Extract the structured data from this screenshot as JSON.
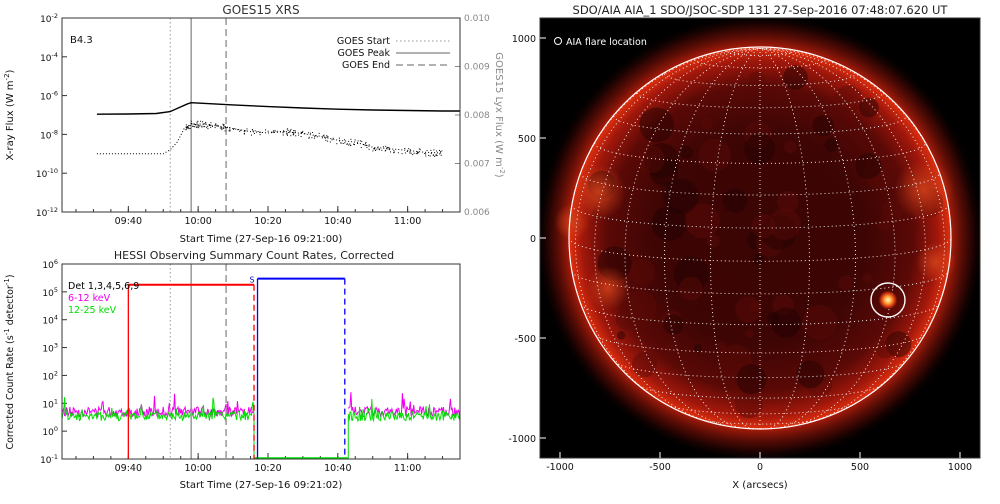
{
  "chart_data": [
    {
      "type": "line",
      "title": "GOES15 XRS",
      "xlabel": "Start Time (27-Sep-16 09:21:00)",
      "ylabel_left": "X-ray Flux (W m^-2)",
      "ylabel_left_text": "X-ray Flux (W m",
      "ylabel_left_exp": "-2",
      "ylabel_right_text": "GOES15 Lyx Flux (W m",
      "ylabel_right_exp": "-2",
      "goes_class": "B4.3",
      "x_range": [
        "09:21",
        "11:15"
      ],
      "x_ticks": [
        "09:40",
        "10:00",
        "10:20",
        "10:40",
        "11:00"
      ],
      "yscale_left": "log",
      "ylim_left": [
        1e-12,
        0.01
      ],
      "y_ticks_left": [
        {
          "value": 0.01,
          "base": "10",
          "exp": "-2"
        },
        {
          "value": 0.0001,
          "base": "10",
          "exp": "-4"
        },
        {
          "value": 1e-06,
          "base": "10",
          "exp": "-6"
        },
        {
          "value": 1e-08,
          "base": "10",
          "exp": "-8"
        },
        {
          "value": 1e-10,
          "base": "10",
          "exp": "-10"
        },
        {
          "value": 1e-12,
          "base": "10",
          "exp": "-12"
        }
      ],
      "ylim_right": [
        0.006,
        0.01
      ],
      "y_ticks_right": [
        "0.010",
        "0.009",
        "0.008",
        "0.007",
        "0.006"
      ],
      "legend": [
        "GOES Start",
        "GOES Peak",
        "GOES End"
      ],
      "legend_position": "top-right",
      "markers": {
        "start": "09:52",
        "peak": "09:58",
        "end": "10:08"
      },
      "series": [
        {
          "line_style": "solid",
          "x": [
            "09:31",
            "09:40",
            "09:48",
            "09:52",
            "09:55",
            "09:57",
            "09:58",
            "10:00",
            "10:10",
            "10:20",
            "10:30",
            "10:40",
            "10:50",
            "11:00",
            "11:10",
            "11:15"
          ],
          "y": [
            1.1e-07,
            1.12e-07,
            1.2e-07,
            1.5e-07,
            2.6e-07,
            3.8e-07,
            4.3e-07,
            4.1e-07,
            3.3e-07,
            2.7e-07,
            2.3e-07,
            2e-07,
            1.8e-07,
            1.7e-07,
            1.6e-07,
            1.6e-07
          ]
        },
        {
          "line_style": "dotted",
          "x": [
            "09:31",
            "09:40",
            "09:50",
            "09:52",
            "09:54",
            "09:56",
            "09:58",
            "10:02",
            "10:06",
            "10:10",
            "10:15",
            "10:20",
            "10:25",
            "10:30",
            "10:35",
            "10:40",
            "10:45",
            "10:50",
            "10:55",
            "11:00",
            "11:05",
            "11:10"
          ],
          "y": [
            1e-09,
            1e-09,
            1e-09,
            1.6e-09,
            4e-09,
            2e-08,
            3.6e-08,
            3.3e-08,
            2.6e-08,
            2e-08,
            1.4e-08,
            1.2e-08,
            1.4e-08,
            1.1e-08,
            8e-09,
            5e-09,
            4e-09,
            2.2e-09,
            1.8e-09,
            1.5e-09,
            1.2e-09,
            1.1e-09
          ]
        }
      ]
    },
    {
      "type": "line",
      "title": "HESSI Observing Summary Count Rates, Corrected",
      "xlabel": "Start Time (27-Sep-16 09:21:02)",
      "ylabel": "Corrected Count Rate (s^-1 detector^-1)",
      "ylabel_text_a": "Corrected Count Rate (s",
      "ylabel_exp_a": "-1",
      "ylabel_text_b": " detector",
      "ylabel_exp_b": "-1",
      "x_range": [
        "09:21",
        "11:15"
      ],
      "x_ticks": [
        "09:40",
        "10:00",
        "10:20",
        "10:40",
        "11:00"
      ],
      "yscale": "log",
      "ylim": [
        0.1,
        1000000.0
      ],
      "y_ticks": [
        {
          "value": 1000000.0,
          "base": "10",
          "exp": "6"
        },
        {
          "value": 100000.0,
          "base": "10",
          "exp": "5"
        },
        {
          "value": 10000.0,
          "base": "10",
          "exp": "4"
        },
        {
          "value": 1000.0,
          "base": "10",
          "exp": "3"
        },
        {
          "value": 100.0,
          "base": "10",
          "exp": "2"
        },
        {
          "value": 10.0,
          "base": "10",
          "exp": "1"
        },
        {
          "value": 1.0,
          "base": "10",
          "exp": "0"
        },
        {
          "value": 0.1,
          "base": "10",
          "exp": "-1"
        }
      ],
      "legend": [
        {
          "label": "Det 1,3,4,5,6,9",
          "color": "#000000"
        },
        {
          "label": "6-12 keV",
          "color": "#ee00ee"
        },
        {
          "label": "12-25 keV",
          "color": "#00dd00"
        }
      ],
      "legend_position": "top-left",
      "markers": {
        "start": "09:52",
        "peak": "09:58",
        "end": "10:08"
      },
      "saa_label": "S",
      "bars": [
        {
          "color": "#ff0000",
          "x_start": "09:40",
          "x_end": "10:16",
          "y": 180000.0
        },
        {
          "color": "#0000ff",
          "x_start": "10:17",
          "x_end": "10:42",
          "y": 300000.0
        }
      ],
      "series": [
        {
          "name": "6-12 keV",
          "color": "#ee00ee",
          "x_segments": [
            [
              "09:21",
              "10:16"
            ],
            [
              "10:43",
              "11:15"
            ]
          ],
          "y_level": 5.0
        },
        {
          "name": "12-25 keV",
          "color": "#00dd00",
          "x_segments": [
            [
              "09:21",
              "10:16"
            ],
            [
              "10:43",
              "11:15"
            ]
          ],
          "y_level": 3.5
        }
      ]
    },
    {
      "type": "image",
      "title": "SDO/AIA AIA_1 SDO/JSOC-SDP 131 27-Sep-2016 07:48:07.620 UT",
      "annotation": "AIA flare location",
      "xlabel": "X (arcsecs)",
      "ylabel": "",
      "xlim": [
        -1100,
        1100
      ],
      "ylim": [
        -1100,
        1100
      ],
      "x_ticks": [
        "-1000",
        "-500",
        "0",
        "500",
        "1000"
      ],
      "y_ticks": [
        "1000",
        "500",
        "0",
        "-500",
        "-1000"
      ],
      "solar_radius": 955,
      "flare_location": {
        "x": 640,
        "y": -310,
        "radius": 85
      }
    }
  ]
}
